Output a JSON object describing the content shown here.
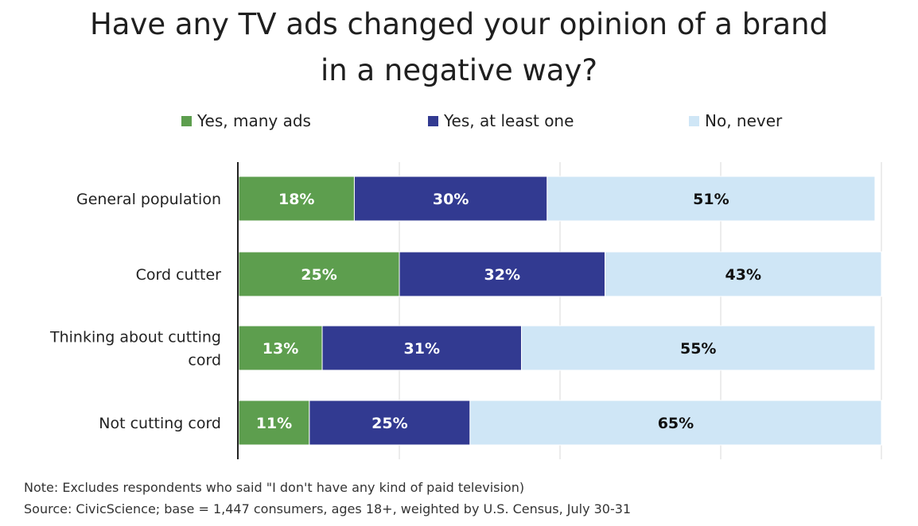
{
  "chart_data": {
    "type": "bar",
    "orientation": "horizontal-stacked",
    "title": "Have any TV ads changed your opinion of a brand in a negative way?",
    "title_lines": [
      "Have any TV ads changed your opinion of a brand",
      "in a negative way?"
    ],
    "categories": [
      [
        "General population"
      ],
      [
        "Cord cutter"
      ],
      [
        "Thinking about cutting",
        "cord"
      ],
      [
        "Not cutting cord"
      ]
    ],
    "series": [
      {
        "name": "Yes, many ads",
        "color": "#5d9e4e",
        "label_color": "#ffffff",
        "values": [
          18,
          25,
          13,
          11
        ],
        "labels": [
          "18%",
          "25%",
          "13%",
          "11%"
        ]
      },
      {
        "name": "Yes, at least one",
        "color": "#323a91",
        "label_color": "#ffffff",
        "values": [
          30,
          32,
          31,
          25
        ],
        "labels": [
          "30%",
          "32%",
          "31%",
          "25%"
        ]
      },
      {
        "name": "No, never",
        "color": "#cfe6f6",
        "label_color": "#111111",
        "values": [
          51,
          43,
          55,
          65
        ],
        "labels": [
          "51%",
          "43%",
          "55%",
          "65%"
        ]
      }
    ],
    "xlim": [
      0,
      100
    ],
    "grid": true,
    "legend_position": "top",
    "xlabel": "",
    "ylabel": ""
  },
  "notes": {
    "note": "Note: Excludes respondents who said \"I don't have any kind of paid television)",
    "source": "Source: CivicScience; base = 1,447 consumers, ages 18+, weighted by U.S. Census, July 30-31"
  }
}
